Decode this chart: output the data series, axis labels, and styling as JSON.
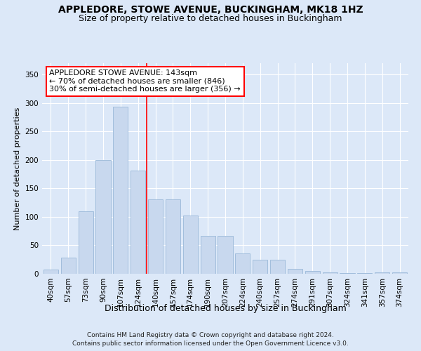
{
  "title": "APPLEDORE, STOWE AVENUE, BUCKINGHAM, MK18 1HZ",
  "subtitle": "Size of property relative to detached houses in Buckingham",
  "xlabel": "Distribution of detached houses by size in Buckingham",
  "ylabel": "Number of detached properties",
  "categories": [
    "40sqm",
    "57sqm",
    "73sqm",
    "90sqm",
    "107sqm",
    "124sqm",
    "140sqm",
    "157sqm",
    "174sqm",
    "190sqm",
    "207sqm",
    "224sqm",
    "240sqm",
    "257sqm",
    "274sqm",
    "291sqm",
    "307sqm",
    "324sqm",
    "341sqm",
    "357sqm",
    "374sqm"
  ],
  "values": [
    7,
    28,
    110,
    200,
    293,
    181,
    131,
    131,
    102,
    67,
    67,
    36,
    25,
    25,
    9,
    5,
    3,
    1,
    1,
    2,
    2
  ],
  "bar_color": "#c8d8ee",
  "bar_edge_color": "#9ab8d8",
  "vline_x_idx": 5,
  "vline_color": "red",
  "annotation_text": "APPLEDORE STOWE AVENUE: 143sqm\n← 70% of detached houses are smaller (846)\n30% of semi-detached houses are larger (356) →",
  "annotation_box_color": "white",
  "annotation_box_edge": "red",
  "ylim": [
    0,
    370
  ],
  "yticks": [
    0,
    50,
    100,
    150,
    200,
    250,
    300,
    350
  ],
  "background_color": "#dce8f8",
  "plot_bg_color": "#dce8f8",
  "footer1": "Contains HM Land Registry data © Crown copyright and database right 2024.",
  "footer2": "Contains public sector information licensed under the Open Government Licence v3.0.",
  "title_fontsize": 10,
  "subtitle_fontsize": 9,
  "xlabel_fontsize": 9,
  "ylabel_fontsize": 8,
  "tick_fontsize": 7.5,
  "annotation_fontsize": 8,
  "footer_fontsize": 6.5
}
